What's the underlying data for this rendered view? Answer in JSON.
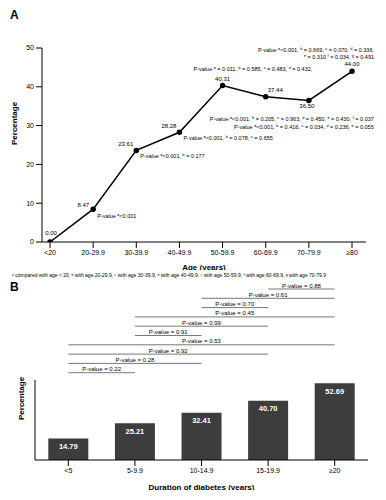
{
  "chart_data": [
    {
      "type": "line",
      "title": "A",
      "x_label": "Age (years)",
      "y_label": "Percentage",
      "categories": [
        "<20",
        "20-29.9",
        "30-39.9",
        "40-49.9",
        "50-59.9",
        "60-69.9",
        "70-79.9",
        "≥80"
      ],
      "values": [
        0.0,
        8.47,
        23.61,
        28.28,
        40.31,
        37.44,
        36.5,
        44.0
      ],
      "value_labels": [
        "0.00",
        "8.47",
        "23.61",
        "28.28",
        "40.31",
        "37.44",
        "36.50",
        "44.00"
      ],
      "data_labels": true,
      "color": "#000000",
      "marker": "circle",
      "grid": false,
      "ylim": [
        0,
        50
      ],
      "yticks": [
        0,
        10,
        20,
        30,
        40,
        50
      ],
      "annotations": [
        null,
        [
          "P-value ᵃ<0.001"
        ],
        [
          "P-value ᵃ<0.001, ᵇ = 0.177"
        ],
        [
          "P-value ᵃ<0.001, ᵇ = 0.078, ᶜ = 0.655"
        ],
        [
          "P-value ᵃ = 0.011, ᵇ = 0.585, ᶜ = 0.483, ᵈ = 0.432,"
        ],
        [
          "P-value ᵃ<0.001, ᵇ = 0.416, ᶜ = 0.034, ᵈ = 0.236, ᵉ = 0.055"
        ],
        [
          "P-value ᵃ<0.001, ᵇ = 0.205, ᶜ = 0.963, ᵈ = 0.450, ᵉ = 0.430, ᶠ = 0.037"
        ],
        [
          "P-value ᵃ<0.001, ᵇ = 0.669, ᶜ = 0.070, ᵈ = 0.336,",
          "ᵉ = 0.310 ᶠ = 0.034, ᵍ = 0.491"
        ]
      ],
      "footnote": "ᵃ compared with age < 20, ᵇ with age 20-29.9, ᶜ with age 30-39.9, ᵈ with age 40-49.9, ᵉ with age 50-59.9, ᶠ with age 60-69.9, ᵍ with age 70-79.9"
    },
    {
      "type": "bar",
      "title": "B",
      "x_label": "Duration of diabetes (years)",
      "y_label": "Percentage",
      "categories": [
        "<5",
        "5-9.9",
        "10-14.9",
        "15-19.9",
        "≥20"
      ],
      "values": [
        14.79,
        25.21,
        32.41,
        40.7,
        52.69
      ],
      "value_labels": [
        "14.79",
        "25.21",
        "32.41",
        "40.70",
        "52.69"
      ],
      "data_labels": true,
      "color": "#3d3d3d",
      "grid": false,
      "tick_labels": "x",
      "ylim": [
        0,
        55
      ],
      "comparisons": [
        {
          "from": "15-19.9",
          "to": "≥20",
          "label": "P-value = 0.88"
        },
        {
          "from": "10-14.9",
          "to": "≥20",
          "label": "P-value = 0.61"
        },
        {
          "from": "10-14.9",
          "to": "15-19.9",
          "label": "P-value = 0.70"
        },
        {
          "from": "5-9.9",
          "to": "≥20",
          "label": "P-value = 0.45"
        },
        {
          "from": "5-9.9",
          "to": "15-19.9",
          "label": "P-value = 0.99"
        },
        {
          "from": "5-9.9",
          "to": "10-14.9",
          "label": "P-value = 0.91"
        },
        {
          "from": "<5",
          "to": "≥20",
          "label": "P-value = 0.53"
        },
        {
          "from": "<5",
          "to": "15-19.9",
          "label": "P-value = 0.92"
        },
        {
          "from": "<5",
          "to": "10-14.9",
          "label": "P-value = 0.28"
        },
        {
          "from": "<5",
          "to": "5-9.9",
          "label": "P-value = 0.22"
        }
      ]
    }
  ]
}
